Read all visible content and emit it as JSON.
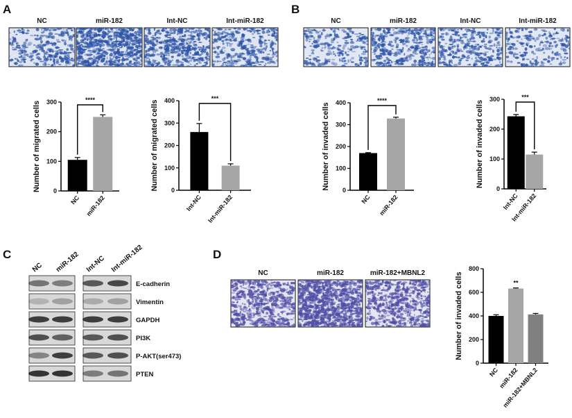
{
  "panels": {
    "A": {
      "label": "A",
      "image_headers": [
        "NC",
        "miR-182",
        "Int-NC",
        "Int-miR-182"
      ]
    },
    "B": {
      "label": "B",
      "image_headers": [
        "NC",
        "miR-182",
        "Int-NC",
        "Int-miR-182"
      ]
    },
    "C": {
      "label": "C",
      "lanes": [
        "NC",
        "miR-182",
        "Int-NC",
        "Int-miR-182"
      ],
      "proteins": [
        "E-cadherin",
        "Vimentin",
        "GAPDH",
        "PI3K",
        "P-AKT(ser473)",
        "PTEN"
      ]
    },
    "D": {
      "label": "D",
      "image_headers": [
        "NC",
        "miR-182",
        "miR-182+MBNL2"
      ]
    }
  },
  "colors": {
    "black_bar": "#000000",
    "gray_bar": "#a6a6a6",
    "dark_gray_bar": "#808080",
    "stain_ab": "#2f55a8",
    "stain_d": "#4f4ea6"
  },
  "chart_data": [
    {
      "id": "A1",
      "type": "bar",
      "ylabel": "Number of migrated cells",
      "ylim": [
        0,
        300
      ],
      "yticks": [
        0,
        100,
        200,
        300
      ],
      "categories": [
        "NC",
        "miR-182"
      ],
      "values": [
        105,
        250
      ],
      "errors": [
        8,
        7
      ],
      "bar_colors": [
        "#000000",
        "#a6a6a6"
      ],
      "significance": {
        "between": [
          0,
          1
        ],
        "label": "****"
      }
    },
    {
      "id": "A2",
      "type": "bar",
      "ylabel": "Number of migrated cells",
      "ylim": [
        0,
        400
      ],
      "yticks": [
        0,
        100,
        200,
        300,
        400
      ],
      "categories": [
        "Int-NC",
        "Int-miR-182"
      ],
      "values": [
        260,
        110
      ],
      "errors": [
        38,
        8
      ],
      "bar_colors": [
        "#000000",
        "#a6a6a6"
      ],
      "significance": {
        "between": [
          0,
          1
        ],
        "label": "***"
      }
    },
    {
      "id": "B1",
      "type": "bar",
      "ylabel": "Number of invaded cells",
      "ylim": [
        0,
        400
      ],
      "yticks": [
        0,
        100,
        200,
        300,
        400
      ],
      "categories": [
        "NC",
        "miR-182"
      ],
      "values": [
        170,
        328
      ],
      "errors": [
        2,
        6
      ],
      "bar_colors": [
        "#000000",
        "#a6a6a6"
      ],
      "significance": {
        "between": [
          0,
          1
        ],
        "label": "****"
      }
    },
    {
      "id": "B2",
      "type": "bar",
      "ylabel": "Number of invaded cells",
      "ylim": [
        0,
        300
      ],
      "yticks": [
        0,
        100,
        200,
        300
      ],
      "categories": [
        "Int-NC",
        "Int-miR-182"
      ],
      "values": [
        243,
        115
      ],
      "errors": [
        6,
        8
      ],
      "bar_colors": [
        "#000000",
        "#a6a6a6"
      ],
      "significance": {
        "between": [
          0,
          1
        ],
        "label": "***"
      }
    },
    {
      "id": "D",
      "type": "bar",
      "ylabel": "Number of invaded cells",
      "ylim": [
        0,
        800
      ],
      "yticks": [
        0,
        200,
        400,
        600,
        800
      ],
      "categories": [
        "NC",
        "miR-182",
        "miR-182+MBNL2"
      ],
      "values": [
        400,
        632,
        413
      ],
      "errors": [
        10,
        5,
        8
      ],
      "bar_colors": [
        "#000000",
        "#a6a6a6",
        "#808080"
      ],
      "significance": {
        "over": 1,
        "label": "**"
      }
    }
  ]
}
